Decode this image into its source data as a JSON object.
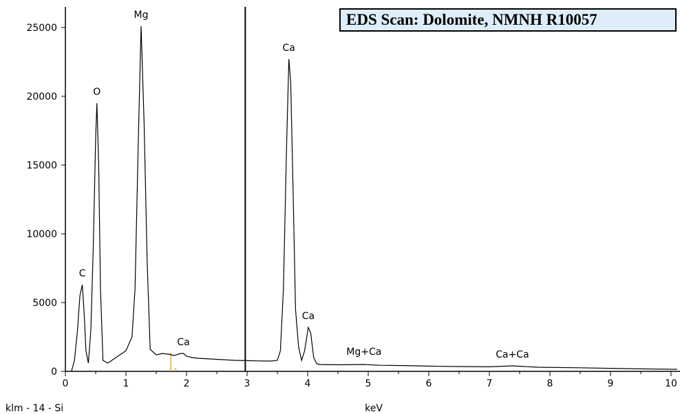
{
  "chart_data": {
    "type": "line",
    "title": "EDS Scan:  Dolomite, NMNH R10057",
    "xlabel": "keV",
    "ylabel": "",
    "footnote": "klm - 14 - Si",
    "xlim": [
      0,
      10.1
    ],
    "ylim": [
      0,
      26000
    ],
    "x_ticks": [
      0,
      1,
      2,
      3,
      4,
      5,
      6,
      7,
      8,
      9,
      10
    ],
    "y_ticks": [
      0,
      5000,
      10000,
      15000,
      20000,
      25000
    ],
    "marker_keV": 2.97,
    "kline_markers": [
      1.74,
      1.82
    ],
    "peak_labels": [
      {
        "label": "C",
        "keV": 0.28,
        "counts": 6300
      },
      {
        "label": "O",
        "keV": 0.52,
        "counts": 19500
      },
      {
        "label": "Mg",
        "keV": 1.25,
        "counts": 25100
      },
      {
        "label": "Ca",
        "keV": 1.95,
        "counts": 1300
      },
      {
        "label": "Ca",
        "keV": 3.69,
        "counts": 22700
      },
      {
        "label": "Ca",
        "keV": 4.01,
        "counts": 3200
      },
      {
        "label": "Mg+Ca",
        "keV": 4.93,
        "counts": 600
      },
      {
        "label": "Ca+Ca",
        "keV": 7.38,
        "counts": 400
      }
    ],
    "series": [
      {
        "x": [
          0.1,
          0.15,
          0.2,
          0.24,
          0.28,
          0.31,
          0.34,
          0.38,
          0.42,
          0.46,
          0.5,
          0.52,
          0.55,
          0.58,
          0.62,
          0.7,
          0.8,
          0.9,
          1.0,
          1.1,
          1.15,
          1.2,
          1.25,
          1.3,
          1.35,
          1.4,
          1.5,
          1.6,
          1.7,
          1.8,
          1.9,
          1.95,
          2.0,
          2.1,
          2.2,
          2.4,
          2.6,
          2.8,
          3.0,
          3.2,
          3.4,
          3.5,
          3.55,
          3.6,
          3.65,
          3.69,
          3.72,
          3.76,
          3.8,
          3.85,
          3.9,
          3.95,
          4.01,
          4.05,
          4.1,
          4.15,
          4.2,
          4.4,
          4.6,
          4.93,
          5.2,
          5.6,
          6.0,
          6.5,
          7.0,
          7.38,
          7.8,
          8.5,
          9.0,
          9.5,
          10.1
        ],
        "y": [
          0,
          800,
          3000,
          5500,
          6300,
          4200,
          1500,
          600,
          3000,
          9000,
          17000,
          19500,
          15000,
          6000,
          800,
          600,
          900,
          1200,
          1500,
          2500,
          6000,
          16000,
          25100,
          18000,
          8000,
          1600,
          1200,
          1300,
          1250,
          1150,
          1300,
          1300,
          1100,
          1000,
          950,
          900,
          850,
          800,
          780,
          760,
          750,
          800,
          1500,
          6000,
          16000,
          22700,
          21000,
          13000,
          4500,
          1800,
          800,
          1500,
          3200,
          2800,
          1000,
          550,
          500,
          480,
          480,
          500,
          440,
          420,
          380,
          350,
          330,
          400,
          300,
          260,
          220,
          180,
          150
        ]
      }
    ]
  }
}
